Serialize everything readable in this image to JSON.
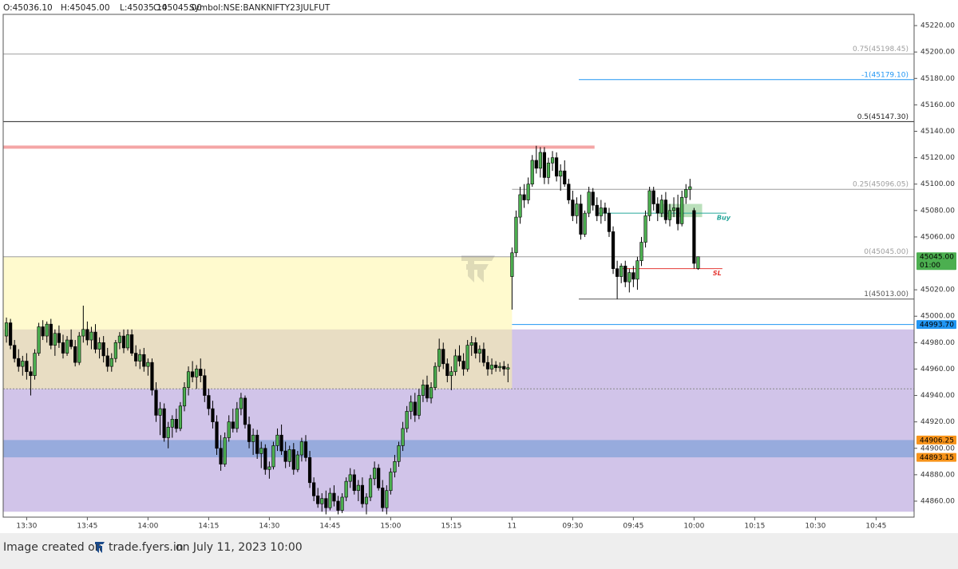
{
  "chart_data": {
    "type": "candlestick",
    "header": [
      "O:45036.10",
      "H:45045.00",
      "L:45035.10",
      "C:45045.00",
      "Symbol:NSE:BANKNIFTY23JULFUT"
    ],
    "footer": {
      "prefix": "Image created on",
      "brand": "trade.fyers.in",
      "suffix": "on July 11, 2023 10:00"
    },
    "up_color": "#4caf50",
    "down_color": "#000000",
    "xlim": [
      -0.8,
      224.4
    ],
    "ylim": [
      44847.9,
      45228.5
    ],
    "xticks": [
      {
        "value": 5,
        "label": "13:30"
      },
      {
        "value": 20,
        "label": "13:45"
      },
      {
        "value": 35,
        "label": "14:00"
      },
      {
        "value": 50,
        "label": "14:15"
      },
      {
        "value": 65,
        "label": "14:30"
      },
      {
        "value": 80,
        "label": "14:45"
      },
      {
        "value": 95,
        "label": "15:00"
      },
      {
        "value": 110,
        "label": "15:15"
      },
      {
        "value": 125,
        "label": "11"
      },
      {
        "value": 140,
        "label": "09:30"
      },
      {
        "value": 155,
        "label": "09:45"
      },
      {
        "value": 170,
        "label": "10:00"
      },
      {
        "value": 185,
        "label": "10:15"
      },
      {
        "value": 200,
        "label": "10:30"
      },
      {
        "value": 215,
        "label": "10:45"
      }
    ],
    "yticks": [
      {
        "value": 45220,
        "label": "45220.00"
      },
      {
        "value": 45200,
        "label": "45200.00"
      },
      {
        "value": 45180,
        "label": "45180.00"
      },
      {
        "value": 45160,
        "label": "45160.00"
      },
      {
        "value": 45140,
        "label": "45140.00"
      },
      {
        "value": 45120,
        "label": "45120.00"
      },
      {
        "value": 45100,
        "label": "45100.00"
      },
      {
        "value": 45080,
        "label": "45080.00"
      },
      {
        "value": 45060,
        "label": "45060.00"
      },
      {
        "value": 45020,
        "label": "45020.00"
      },
      {
        "value": 45000,
        "label": "45000.00"
      },
      {
        "value": 44980,
        "label": "44980.00"
      },
      {
        "value": 44960,
        "label": "44960.00"
      },
      {
        "value": 44940,
        "label": "44940.00"
      },
      {
        "value": 44920,
        "label": "44920.00"
      },
      {
        "value": 44900,
        "label": "44900.00"
      },
      {
        "value": 44880,
        "label": "44880.00"
      },
      {
        "value": 44860,
        "label": "44860.00"
      }
    ],
    "zones": [
      {
        "low": 44852,
        "high": 44990,
        "color": "#d1c4e9",
        "opacity": 1
      },
      {
        "low": 44945,
        "high": 45045,
        "color": "#fff59d",
        "opacity": 0.5,
        "x_to": 125
      },
      {
        "low": 44893.15,
        "high": 44906.25,
        "color": "#90a9dc",
        "opacity": 0.9
      }
    ],
    "levels": [
      {
        "value": 45198.45,
        "label": "0.75(45198.45)",
        "color": "#9e9e9e"
      },
      {
        "value": 45179.1,
        "label": "-1(45179.10)",
        "color": "#2196f3",
        "x_from": 141.5
      },
      {
        "value": 45147.3,
        "label": "0.5(45147.30)",
        "color": "#222222"
      },
      {
        "value": 45128,
        "color": "#f4a6a6",
        "width": 4,
        "x_to": 145.4
      },
      {
        "value": 45096.05,
        "label": "0.25(45096.05)",
        "color": "#9e9e9e",
        "x_from": 125
      },
      {
        "value": 45045,
        "label": "0(45045.00)",
        "color": "#9e9e9e"
      },
      {
        "value": 45013,
        "label": "1(45013.00)",
        "color": "#555555",
        "x_from": 141.5
      },
      {
        "value": 44993.7,
        "color": "#2196f3",
        "x_from": 125
      },
      {
        "value": 44945,
        "color": "#888888",
        "dash": true
      }
    ],
    "signals": [
      {
        "value": 45078,
        "label": "Buy",
        "color": "#26a69a",
        "x_from": 146.4,
        "x_to": 178,
        "box": [
          45075,
          45085
        ],
        "box_x": [
          161.4,
          172
        ]
      },
      {
        "value": 45036,
        "label": "SL",
        "color": "#e53935",
        "x_from": 152.4,
        "x_to": 177
      }
    ],
    "badges": [
      {
        "value": 45045,
        "label": "45045.00",
        "sublabel": "01:00",
        "color": "#4caf50"
      },
      {
        "value": 44993.7,
        "label": "44993.70",
        "color": "#2196f3"
      },
      {
        "value": 44906.25,
        "label": "44906.25",
        "color": "#f7931a"
      },
      {
        "value": 44893.15,
        "label": "44893.15",
        "color": "#f7931a"
      }
    ],
    "candles": [
      [
        44985,
        44999,
        44980,
        44995
      ],
      [
        44995,
        44998,
        44975,
        44978
      ],
      [
        44978,
        44982,
        44965,
        44968
      ],
      [
        44968,
        44975,
        44958,
        44962
      ],
      [
        44962,
        44970,
        44955,
        44966
      ],
      [
        44966,
        44972,
        44952,
        44958
      ],
      [
        44958,
        44962,
        44940,
        44955
      ],
      [
        44955,
        44975,
        44952,
        44972
      ],
      [
        44972,
        44995,
        44970,
        44992
      ],
      [
        44992,
        44997,
        44982,
        44985
      ],
      [
        44985,
        44996,
        44980,
        44994
      ],
      [
        44994,
        44998,
        44975,
        44978
      ],
      [
        44978,
        44990,
        44970,
        44987
      ],
      [
        44987,
        44993,
        44976,
        44980
      ],
      [
        44980,
        44986,
        44968,
        44972
      ],
      [
        44972,
        44985,
        44970,
        44982
      ],
      [
        44982,
        44990,
        44975,
        44977
      ],
      [
        44977,
        44982,
        44962,
        44965
      ],
      [
        44965,
        44988,
        44963,
        44985
      ],
      [
        44985,
        45008,
        44980,
        44990
      ],
      [
        44990,
        44996,
        44978,
        44982
      ],
      [
        44982,
        44992,
        44975,
        44988
      ],
      [
        44988,
        44994,
        44972,
        44975
      ],
      [
        44975,
        44984,
        44968,
        44980
      ],
      [
        44980,
        44985,
        44965,
        44970
      ],
      [
        44970,
        44976,
        44958,
        44962
      ],
      [
        44962,
        44972,
        44958,
        44968
      ],
      [
        44968,
        44982,
        44965,
        44980
      ],
      [
        44980,
        44988,
        44975,
        44985
      ],
      [
        44985,
        44990,
        44972,
        44976
      ],
      [
        44976,
        44990,
        44974,
        44986
      ],
      [
        44986,
        44990,
        44970,
        44972
      ],
      [
        44972,
        44978,
        44962,
        44966
      ],
      [
        44966,
        44975,
        44960,
        44971
      ],
      [
        44971,
        44976,
        44958,
        44962
      ],
      [
        44962,
        44968,
        44955,
        44965
      ],
      [
        44965,
        44968,
        44940,
        44944
      ],
      [
        44944,
        44950,
        44920,
        44925
      ],
      [
        44925,
        44935,
        44910,
        44930
      ],
      [
        44930,
        44934,
        44905,
        44908
      ],
      [
        44908,
        44920,
        44900,
        44916
      ],
      [
        44916,
        44925,
        44908,
        44922
      ],
      [
        44922,
        44930,
        44912,
        44915
      ],
      [
        44915,
        44935,
        44913,
        44932
      ],
      [
        44932,
        44950,
        44928,
        44946
      ],
      [
        44946,
        44962,
        44940,
        44958
      ],
      [
        44958,
        44966,
        44950,
        44954
      ],
      [
        44954,
        44963,
        44945,
        44960
      ],
      [
        44960,
        44968,
        44950,
        44955
      ],
      [
        44955,
        44960,
        44935,
        44940
      ],
      [
        44940,
        44945,
        44925,
        44930
      ],
      [
        44930,
        44936,
        44915,
        44920
      ],
      [
        44920,
        44925,
        44895,
        44900
      ],
      [
        44900,
        44910,
        44883,
        44888
      ],
      [
        44888,
        44912,
        44886,
        44908
      ],
      [
        44908,
        44925,
        44905,
        44920
      ],
      [
        44920,
        44930,
        44912,
        44915
      ],
      [
        44915,
        44935,
        44912,
        44930
      ],
      [
        44930,
        44942,
        44925,
        44938
      ],
      [
        44938,
        44940,
        44915,
        44918
      ],
      [
        44918,
        44924,
        44900,
        44905
      ],
      [
        44905,
        44915,
        44895,
        44910
      ],
      [
        44910,
        44914,
        44892,
        44896
      ],
      [
        44896,
        44905,
        44885,
        44900
      ],
      [
        44900,
        44903,
        44880,
        44884
      ],
      [
        44884,
        44890,
        44877,
        44886
      ],
      [
        44886,
        44905,
        44884,
        44902
      ],
      [
        44902,
        44915,
        44898,
        44910
      ],
      [
        44910,
        44918,
        44895,
        44898
      ],
      [
        44898,
        44905,
        44885,
        44890
      ],
      [
        44890,
        44902,
        44886,
        44899
      ],
      [
        44899,
        44904,
        44880,
        44884
      ],
      [
        44884,
        44898,
        44882,
        44895
      ],
      [
        44895,
        44908,
        44890,
        44905
      ],
      [
        44905,
        44910,
        44890,
        44893
      ],
      [
        44893,
        44898,
        44870,
        44874
      ],
      [
        44874,
        44878,
        44860,
        44864
      ],
      [
        44864,
        44870,
        44855,
        44858
      ],
      [
        44858,
        44866,
        44852,
        44862
      ],
      [
        44862,
        44868,
        44850,
        44855
      ],
      [
        44855,
        44870,
        44853,
        44866
      ],
      [
        44866,
        44872,
        44856,
        44860
      ],
      [
        44860,
        44864,
        44850,
        44853
      ],
      [
        44853,
        44866,
        44851,
        44863
      ],
      [
        44863,
        44878,
        44860,
        44875
      ],
      [
        44875,
        44885,
        44870,
        44880
      ],
      [
        44880,
        44884,
        44865,
        44868
      ],
      [
        44868,
        44876,
        44860,
        44872
      ],
      [
        44872,
        44878,
        44855,
        44858
      ],
      [
        44858,
        44866,
        44850,
        44863
      ],
      [
        44863,
        44880,
        44860,
        44877
      ],
      [
        44877,
        44890,
        44872,
        44885
      ],
      [
        44885,
        44888,
        44868,
        44870
      ],
      [
        44870,
        44876,
        44852,
        44855
      ],
      [
        44855,
        44872,
        44850,
        44868
      ],
      [
        44868,
        44885,
        44865,
        44882
      ],
      [
        44882,
        44895,
        44878,
        44890
      ],
      [
        44890,
        44905,
        44886,
        44902
      ],
      [
        44902,
        44920,
        44898,
        44915
      ],
      [
        44915,
        44932,
        44912,
        44928
      ],
      [
        44928,
        44940,
        44922,
        44935
      ],
      [
        44935,
        44942,
        44920,
        44925
      ],
      [
        44925,
        44945,
        44922,
        44940
      ],
      [
        44940,
        44952,
        44935,
        44948
      ],
      [
        44948,
        44955,
        44935,
        44938
      ],
      [
        44938,
        44950,
        44934,
        44946
      ],
      [
        44946,
        44965,
        44944,
        44962
      ],
      [
        44962,
        44983,
        44958,
        44975
      ],
      [
        44975,
        44980,
        44960,
        44964
      ],
      [
        44964,
        44968,
        44950,
        44955
      ],
      [
        44955,
        44962,
        44944,
        44958
      ],
      [
        44958,
        44975,
        44955,
        44970
      ],
      [
        44970,
        44978,
        44962,
        44966
      ],
      [
        44966,
        44972,
        44955,
        44960
      ],
      [
        44960,
        44982,
        44958,
        44978
      ],
      [
        44978,
        44985,
        44970,
        44980
      ],
      [
        44980,
        44984,
        44968,
        44972
      ],
      [
        44972,
        44978,
        44965,
        44975
      ],
      [
        44975,
        44980,
        44962,
        44965
      ],
      [
        44965,
        44970,
        44955,
        44960
      ],
      [
        44960,
        44968,
        44956,
        44963
      ],
      [
        44963,
        44966,
        44958,
        44961
      ],
      [
        44961,
        44965,
        44958,
        44962
      ],
      [
        44962,
        44966,
        44955,
        44960
      ],
      [
        44960,
        44964,
        44950,
        44961
      ],
      [
        45030,
        45052,
        45005,
        45048
      ],
      [
        45048,
        45080,
        45045,
        45075
      ],
      [
        45075,
        45098,
        45070,
        45092
      ],
      [
        45092,
        45100,
        45082,
        45088
      ],
      [
        45088,
        45105,
        45085,
        45100
      ],
      [
        45100,
        45122,
        45098,
        45118
      ],
      [
        45118,
        45129,
        45108,
        45112
      ],
      [
        45112,
        45128,
        45105,
        45124
      ],
      [
        45124,
        45128,
        45100,
        45105
      ],
      [
        45105,
        45120,
        45100,
        45116
      ],
      [
        45116,
        45125,
        45110,
        45120
      ],
      [
        45120,
        45124,
        45102,
        45106
      ],
      [
        45106,
        45115,
        45095,
        45110
      ],
      [
        45110,
        45118,
        45098,
        45100
      ],
      [
        45100,
        45104,
        45085,
        45088
      ],
      [
        45088,
        45095,
        45072,
        45076
      ],
      [
        45076,
        45090,
        45070,
        45085
      ],
      [
        45085,
        45092,
        45058,
        45062
      ],
      [
        45062,
        45080,
        45060,
        45078
      ],
      [
        45078,
        45098,
        45075,
        45094
      ],
      [
        45094,
        45097,
        45080,
        45084
      ],
      [
        45084,
        45090,
        45072,
        45076
      ],
      [
        45076,
        45088,
        45070,
        45082
      ],
      [
        45082,
        45086,
        45072,
        45078
      ],
      [
        45078,
        45082,
        45060,
        45064
      ],
      [
        45064,
        45068,
        45032,
        45036
      ],
      [
        45036,
        45042,
        45013,
        45030
      ],
      [
        45030,
        45040,
        45025,
        45038
      ],
      [
        45038,
        45042,
        45022,
        45026
      ],
      [
        45026,
        45036,
        45018,
        45033
      ],
      [
        45033,
        45038,
        45022,
        45028
      ],
      [
        45028,
        45045,
        45020,
        45042
      ],
      [
        45042,
        45060,
        45038,
        45056
      ],
      [
        45056,
        45080,
        45052,
        45076
      ],
      [
        45076,
        45098,
        45072,
        45095
      ],
      [
        45095,
        45098,
        45080,
        45085
      ],
      [
        45085,
        45090,
        45072,
        45078
      ],
      [
        45078,
        45092,
        45075,
        45088
      ],
      [
        45088,
        45094,
        45070,
        45073
      ],
      [
        45073,
        45085,
        45068,
        45080
      ],
      [
        45080,
        45090,
        45075,
        45082
      ],
      [
        45082,
        45092,
        45065,
        45070
      ],
      [
        45070,
        45095,
        45068,
        45090
      ],
      [
        45090,
        45100,
        45085,
        45096
      ],
      [
        45096,
        45104,
        45088,
        45098
      ],
      [
        45080,
        45082,
        45036,
        45040
      ],
      [
        45036.1,
        45045.0,
        45035.1,
        45045.0
      ]
    ]
  }
}
